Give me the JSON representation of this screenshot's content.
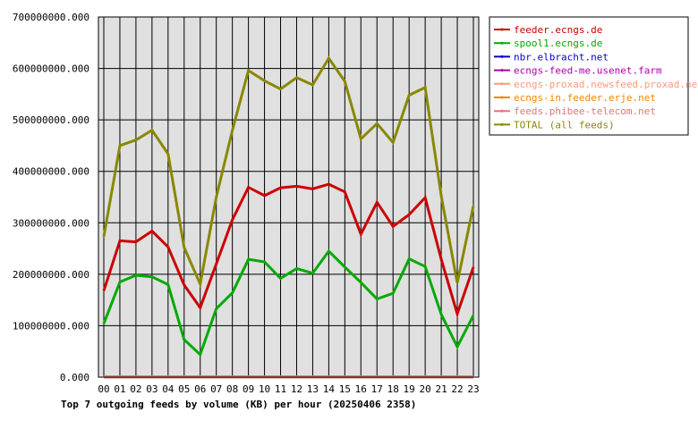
{
  "chart_data": {
    "type": "line",
    "title": "Top 7 outgoing feeds by volume (KB) per hour (20250406 2358)",
    "xlabel": "",
    "ylabel": "",
    "ylim": [
      0,
      700000000
    ],
    "grid": true,
    "legend_position": "right",
    "y_ticks": [
      "0.000",
      "100000000.000",
      "200000000.000",
      "300000000.000",
      "400000000.000",
      "500000000.000",
      "600000000.000",
      "700000000.000"
    ],
    "categories": [
      "00",
      "01",
      "02",
      "03",
      "04",
      "05",
      "06",
      "07",
      "08",
      "09",
      "10",
      "11",
      "12",
      "13",
      "14",
      "15",
      "16",
      "17",
      "18",
      "19",
      "20",
      "21",
      "22",
      "23"
    ],
    "series": [
      {
        "name": "feeder.ecngs.de",
        "color": "#cc0000",
        "values": [
          168000000,
          265000000,
          263000000,
          284000000,
          253000000,
          179000000,
          135000000,
          220000000,
          306000000,
          369000000,
          353000000,
          368000000,
          371000000,
          366000000,
          375000000,
          360000000,
          278000000,
          340000000,
          293000000,
          316000000,
          349000000,
          229000000,
          123000000,
          214000000
        ]
      },
      {
        "name": "spool1.ecngs.de",
        "color": "#00aa00",
        "values": [
          104000000,
          185000000,
          198000000,
          195000000,
          180000000,
          73000000,
          44000000,
          133000000,
          164000000,
          229000000,
          224000000,
          192000000,
          211000000,
          202000000,
          245000000,
          214000000,
          184000000,
          152000000,
          163000000,
          230000000,
          215000000,
          122000000,
          59000000,
          120000000
        ]
      },
      {
        "name": "nbr.elbracht.net",
        "color": "#0000cc",
        "values": [
          500000,
          500000,
          500000,
          500000,
          500000,
          500000,
          500000,
          500000,
          500000,
          500000,
          500000,
          500000,
          500000,
          500000,
          500000,
          500000,
          500000,
          500000,
          500000,
          500000,
          500000,
          500000,
          500000,
          500000
        ]
      },
      {
        "name": "ecngs-feed-me.usenet.farm",
        "color": "#aa00aa",
        "values": [
          500000,
          500000,
          500000,
          500000,
          500000,
          500000,
          500000,
          500000,
          500000,
          500000,
          500000,
          500000,
          500000,
          500000,
          500000,
          500000,
          500000,
          500000,
          500000,
          500000,
          500000,
          500000,
          500000,
          500000
        ]
      },
      {
        "name": "ecngs-proxad.newsfeed.proxad.net",
        "color": "#ff9977",
        "values": [
          500000,
          500000,
          500000,
          500000,
          500000,
          500000,
          500000,
          500000,
          500000,
          500000,
          500000,
          500000,
          500000,
          500000,
          500000,
          500000,
          500000,
          500000,
          500000,
          500000,
          500000,
          500000,
          500000,
          500000
        ]
      },
      {
        "name": "ecngs-in.feeder.erje.net",
        "color": "#ee8800",
        "values": [
          500000,
          500000,
          500000,
          500000,
          500000,
          500000,
          500000,
          500000,
          500000,
          500000,
          500000,
          500000,
          500000,
          500000,
          500000,
          500000,
          500000,
          500000,
          500000,
          500000,
          500000,
          500000,
          500000,
          500000
        ]
      },
      {
        "name": "feeds.phibee-telecom.net",
        "color": "#dd7777",
        "values": [
          500000,
          500000,
          500000,
          500000,
          500000,
          500000,
          500000,
          500000,
          500000,
          500000,
          500000,
          500000,
          500000,
          500000,
          500000,
          500000,
          500000,
          500000,
          500000,
          500000,
          500000,
          500000,
          500000,
          500000
        ]
      },
      {
        "name": "TOTAL (all feeds)",
        "color": "#888800",
        "values": [
          273000000,
          450000000,
          461000000,
          480000000,
          434000000,
          252000000,
          181000000,
          350000000,
          480000000,
          596000000,
          576000000,
          560000000,
          582000000,
          568000000,
          620000000,
          575000000,
          463000000,
          493000000,
          456000000,
          548000000,
          563000000,
          352000000,
          183000000,
          333000000
        ]
      }
    ]
  }
}
